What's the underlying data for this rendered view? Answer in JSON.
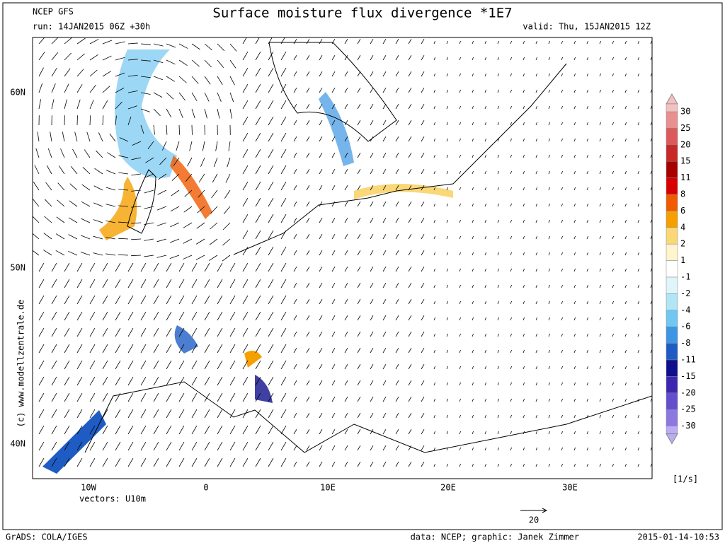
{
  "header": {
    "model": "NCEP GFS",
    "run": "run: 14JAN2015 06Z +30h",
    "title": "Surface moisture flux divergence *1E7",
    "valid": "valid: Thu, 15JAN2015 12Z"
  },
  "map": {
    "lat_labels": [
      "60N",
      "50N",
      "40N"
    ],
    "lon_labels": [
      "10W",
      "0",
      "10E",
      "20E",
      "30E"
    ],
    "vectors": "vectors: U10m",
    "reference_vector": "20",
    "credit": "(c) www.modellzentrale.de"
  },
  "colorbar": {
    "labels": [
      30,
      25,
      20,
      15,
      11,
      8,
      6,
      4,
      2,
      1,
      -1,
      -2,
      -4,
      -6,
      -8,
      -11,
      -15,
      -20,
      -25,
      -30
    ],
    "colors": [
      "#f4c0c0",
      "#e89090",
      "#dc5a5a",
      "#c82828",
      "#a80000",
      "#d80000",
      "#f05a00",
      "#f5a000",
      "#fad878",
      "#fff4cc",
      "#ffffff",
      "#e0f4fc",
      "#b0e6f6",
      "#72c6f2",
      "#3c96e4",
      "#1e5cc4",
      "#10108c",
      "#3c28b0",
      "#6450cc",
      "#8c78e0",
      "#bcacf4"
    ],
    "unit": "[1/s]"
  },
  "footer": {
    "software": "GrADS: COLA/IGES",
    "source": "data: NCEP; graphic: Janek Zimmer",
    "timestamp": "2015-01-14-10:53"
  }
}
